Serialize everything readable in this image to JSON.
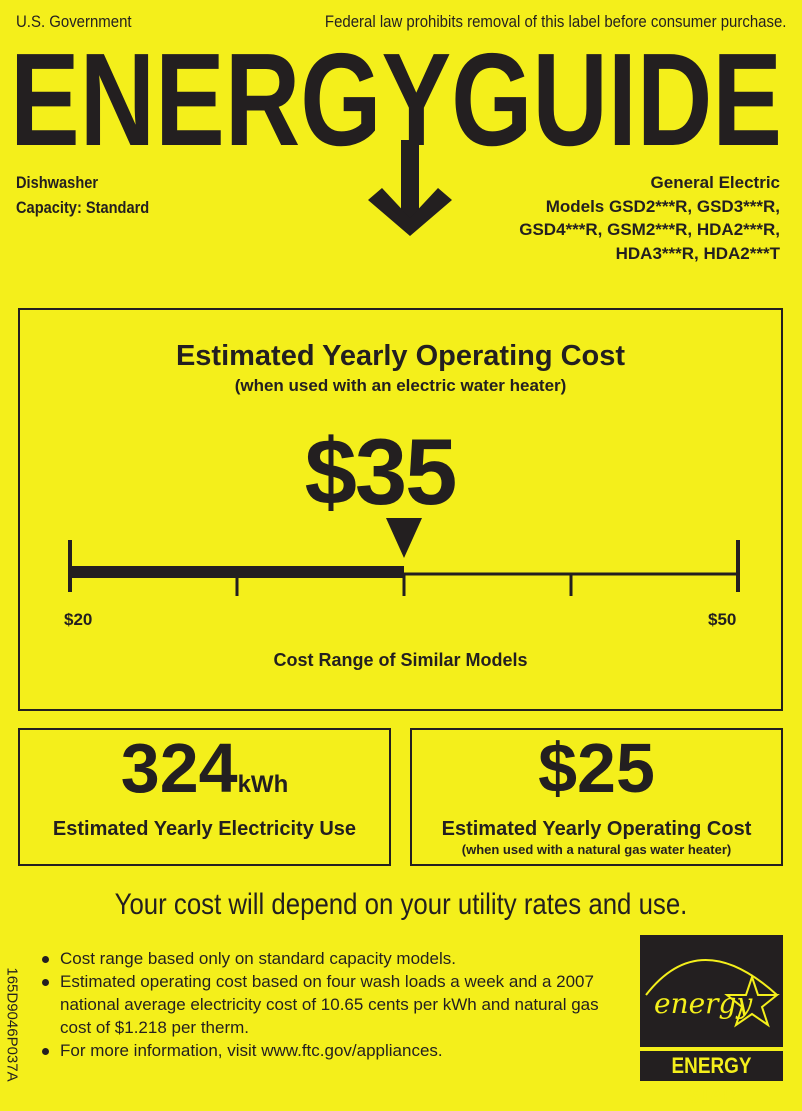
{
  "header": {
    "left": "U.S. Government",
    "right": "Federal law prohibits removal of this label before consumer purchase.",
    "title": "ENERGYGUIDE"
  },
  "product": {
    "type": "Dishwasher",
    "capacity": "Capacity: Standard"
  },
  "manufacturer": {
    "name": "General Electric",
    "models": [
      "Models GSD2***R, GSD3***R,",
      "GSD4***R, GSM2***R, HDA2***R,",
      "HDA3***R, HDA2***T"
    ]
  },
  "main": {
    "title": "Estimated Yearly Operating Cost",
    "subtitle": "(when used with an electric water heater)",
    "cost": "$35",
    "cost_value": 35,
    "range_min_label": "$20",
    "range_max_label": "$50",
    "range_min": 20,
    "range_max": 50,
    "range_caption": "Cost Range of Similar Models"
  },
  "electricity": {
    "value": "324",
    "unit": "kWh",
    "label": "Estimated Yearly Electricity Use"
  },
  "gas": {
    "value": "$25",
    "label": "Estimated Yearly Operating Cost",
    "sublabel": "(when used with a natural gas water heater)"
  },
  "disclaimer": "Your cost will depend on your utility rates and use.",
  "notes": [
    "Cost range based only on standard capacity models.",
    "Estimated operating cost based on four wash loads a week and a 2007 national average electricity cost of 10.65 cents per kWh and natural gas cost of $1.218 per therm.",
    "For more information, visit www.ftc.gov/appliances."
  ],
  "label_code": "165D9046P037A",
  "energy_star": {
    "script": "energy",
    "label": "ENERGY STAR"
  },
  "colors": {
    "background": "#f4ef1b",
    "ink": "#231f20"
  }
}
